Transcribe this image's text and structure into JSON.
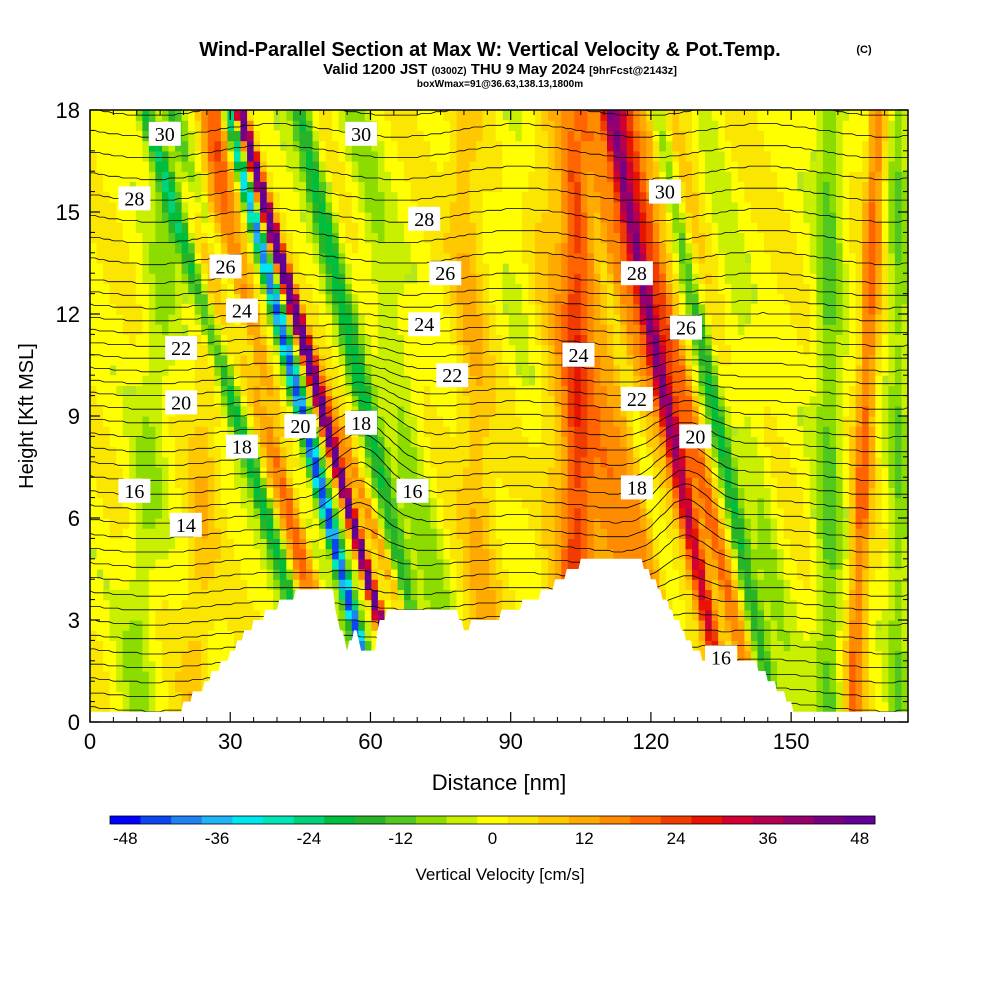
{
  "header": {
    "title": "Wind-Parallel Section at Max W: Vertical Velocity & Pot.Temp.",
    "copyright": "(C)",
    "valid_prefix": "Valid 1200 JST",
    "valid_utc": "(0300Z)",
    "valid_date": "THU 9 May 2024",
    "forecast": "[9hrFcst@2143z]",
    "box_info": "boxWmax=91@36.63,138.13,1800m"
  },
  "chart_data": {
    "type": "heatmap",
    "title": "Wind-Parallel Section at Max W: Vertical Velocity & Pot.Temp.",
    "xlabel": "Distance [nm]",
    "ylabel": "Height [Kft MSL]",
    "xlim": [
      0,
      175
    ],
    "ylim": [
      0,
      18
    ],
    "xticks": [
      0,
      30,
      60,
      90,
      120,
      150
    ],
    "yticks": [
      0,
      3,
      6,
      9,
      12,
      15,
      18
    ],
    "grid": false,
    "colorbar": {
      "label": "Vertical Velocity [cm/s]",
      "min": -48,
      "max": 52,
      "step": 4,
      "tick_values": [
        -48,
        -36,
        -24,
        -12,
        0,
        12,
        24,
        36,
        48
      ],
      "colors": [
        "#0000ff",
        "#0a46f2",
        "#1e82f0",
        "#1eb4f5",
        "#00e6f0",
        "#00e6b4",
        "#00d278",
        "#00be3c",
        "#28b428",
        "#50c81e",
        "#8cdc00",
        "#c8f000",
        "#ffff00",
        "#fae600",
        "#ffc800",
        "#ffaa00",
        "#ff8c00",
        "#ff6400",
        "#f03c00",
        "#e61400",
        "#d20032",
        "#b40050",
        "#96006e",
        "#780082",
        "#640096"
      ]
    },
    "isentrope_labels": [
      {
        "text": "30",
        "x": 16,
        "z": 17.3
      },
      {
        "text": "30",
        "x": 58,
        "z": 17.3
      },
      {
        "text": "30",
        "x": 123,
        "z": 15.6
      },
      {
        "text": "28",
        "x": 9.5,
        "z": 15.4
      },
      {
        "text": "28",
        "x": 71.5,
        "z": 14.8
      },
      {
        "text": "28",
        "x": 117,
        "z": 13.2
      },
      {
        "text": "26",
        "x": 29,
        "z": 13.4
      },
      {
        "text": "26",
        "x": 76,
        "z": 13.2
      },
      {
        "text": "26",
        "x": 127.5,
        "z": 11.6
      },
      {
        "text": "24",
        "x": 32.5,
        "z": 12.1
      },
      {
        "text": "24",
        "x": 71.5,
        "z": 11.7
      },
      {
        "text": "24",
        "x": 104.5,
        "z": 10.8
      },
      {
        "text": "22",
        "x": 19.5,
        "z": 11.0
      },
      {
        "text": "22",
        "x": 77.5,
        "z": 10.2
      },
      {
        "text": "22",
        "x": 117,
        "z": 9.5
      },
      {
        "text": "20",
        "x": 19.5,
        "z": 9.4
      },
      {
        "text": "20",
        "x": 45,
        "z": 8.7
      },
      {
        "text": "20",
        "x": 129.5,
        "z": 8.4
      },
      {
        "text": "18",
        "x": 32.5,
        "z": 8.1
      },
      {
        "text": "18",
        "x": 58,
        "z": 8.8
      },
      {
        "text": "18",
        "x": 117,
        "z": 6.9
      },
      {
        "text": "16",
        "x": 9.5,
        "z": 6.8
      },
      {
        "text": "16",
        "x": 69,
        "z": 6.8
      },
      {
        "text": "16",
        "x": 135,
        "z": 1.9
      },
      {
        "text": "14",
        "x": 20.5,
        "z": 5.8
      }
    ]
  }
}
